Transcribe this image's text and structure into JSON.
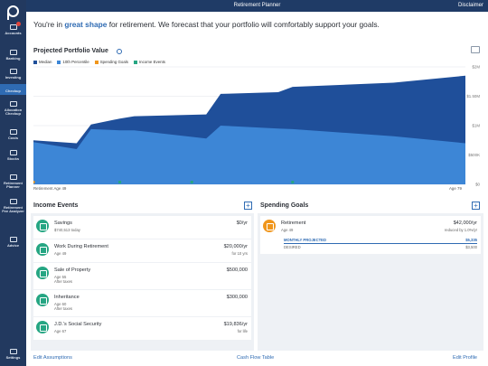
{
  "topbar": {
    "title": "Retirement Planner",
    "disclaimer": "Disclaimer"
  },
  "sidebar": {
    "items": [
      {
        "label": "Accounts",
        "icon": "accounts-icon"
      },
      {
        "label": "Banking",
        "icon": "bank-icon"
      },
      {
        "label": "Investing",
        "icon": "investing-icon"
      },
      {
        "label": "Checkup",
        "icon": "checkup-icon"
      },
      {
        "label": "Allocation\nCheckup",
        "icon": "allocation-icon"
      },
      {
        "label": "Costs",
        "icon": "costs-icon"
      },
      {
        "label": "Stocks",
        "icon": "stocks-icon"
      },
      {
        "label": "Retirement\nPlanner",
        "icon": "retirement-icon"
      },
      {
        "label": "Retirement\nFee Analyzer",
        "icon": "fee-analyzer-icon"
      },
      {
        "label": "Advice",
        "icon": "advice-icon"
      },
      {
        "label": "Settings",
        "icon": "settings-icon"
      }
    ]
  },
  "headline": {
    "pre": "You're in ",
    "highlight": "great shape",
    "post": " for retirement. We forecast that your portfolio will comfortably support your goals."
  },
  "projected": {
    "title": "Projected Portfolio Value",
    "legend": [
      {
        "label": "Median",
        "color": "#1f4f9a"
      },
      {
        "label": "10th Percentile",
        "color": "#3d86d6"
      },
      {
        "label": "Spending Goals",
        "color": "#f0961c"
      },
      {
        "label": "Income Events",
        "color": "#26a683"
      }
    ],
    "age_start": "Retirement Age 49",
    "age_end": "Age 79"
  },
  "chart_data": {
    "type": "area",
    "x_start_age": 49,
    "x_end_age": 79,
    "y_ticks": [
      "$0",
      "$500K",
      "$1M",
      "$1.50M",
      "$2M"
    ],
    "ylim": [
      0,
      2000000
    ],
    "series": [
      {
        "name": "Median",
        "x": [
          49,
          52,
          53,
          55,
          56,
          61,
          62,
          66,
          67,
          74,
          79
        ],
        "values": [
          750000,
          700000,
          1020000,
          1120000,
          1160000,
          1190000,
          1540000,
          1570000,
          1660000,
          1730000,
          1850000
        ]
      },
      {
        "name": "10th Percentile",
        "x": [
          49,
          52,
          53,
          55,
          56,
          61,
          62,
          66,
          67,
          74,
          79
        ],
        "values": [
          720000,
          600000,
          940000,
          920000,
          920000,
          780000,
          1000000,
          950000,
          940000,
          820000,
          700000
        ]
      }
    ],
    "markers": [
      {
        "type": "Spending Goals",
        "x": 49
      },
      {
        "type": "Income Events",
        "x": 55
      },
      {
        "type": "Income Events",
        "x": 60
      },
      {
        "type": "Income Events",
        "x": 67
      }
    ]
  },
  "income": {
    "title": "Income Events",
    "items": [
      {
        "name": "Savings",
        "sub": "$740,513 today",
        "amount": "$0/yr",
        "amount_sub": ""
      },
      {
        "name": "Work During Retirement",
        "sub": "Age 49",
        "amount": "$20,000/yr",
        "amount_sub": "for 10 yrs"
      },
      {
        "name": "Sale of Property",
        "sub": "Age 55\nAfter taxes",
        "amount": "$500,000",
        "amount_sub": ""
      },
      {
        "name": "Inheritance",
        "sub": "Age 60\nAfter taxes",
        "amount": "$300,000",
        "amount_sub": ""
      },
      {
        "name": "J.D.'s Social Security",
        "sub": "Age 67",
        "amount": "$19,836/yr",
        "amount_sub": "for life"
      }
    ]
  },
  "spending": {
    "title": "Spending Goals",
    "item": {
      "name": "Retirement",
      "sub": "Age 49",
      "amount": "$42,000/yr",
      "amount_sub": "reduced by 1.0%/yr",
      "monthly_label": "MONTHLY PROJECTED",
      "monthly_value": "$5,335",
      "desired_label": "DESIRED",
      "desired_value": "$3,500"
    }
  },
  "footer": {
    "edit_assumptions": "Edit Assumptions",
    "cash_flow": "Cash Flow Table",
    "edit_profile": "Edit Profile"
  }
}
